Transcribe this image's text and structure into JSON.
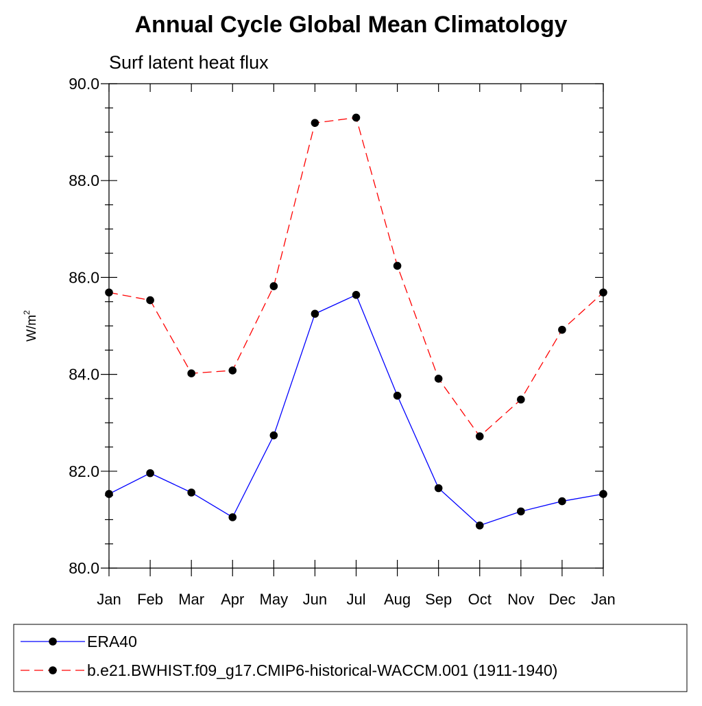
{
  "chart_data": {
    "type": "line",
    "title": "Annual Cycle Global Mean Climatology",
    "subtitle": "Surf latent heat flux",
    "ylabel": "W/m",
    "ylabel_superscript": "2",
    "xlabel": "",
    "categories": [
      "Jan",
      "Feb",
      "Mar",
      "Apr",
      "May",
      "Jun",
      "Jul",
      "Aug",
      "Sep",
      "Oct",
      "Nov",
      "Dec",
      "Jan"
    ],
    "ylim": [
      80.0,
      90.0
    ],
    "y_major_ticks": [
      80.0,
      82.0,
      84.0,
      86.0,
      88.0,
      90.0
    ],
    "y_tick_labels": [
      "80.0",
      "82.0",
      "84.0",
      "86.0",
      "88.0",
      "90.0"
    ],
    "y_minor_step": 0.5,
    "grid": false,
    "legend_position": "bottom",
    "series": [
      {
        "name": "ERA40",
        "color": "#0000ff",
        "line_style": "solid",
        "marker": "circle",
        "values": [
          81.53,
          81.96,
          81.56,
          81.05,
          82.74,
          85.25,
          85.64,
          83.56,
          81.65,
          80.88,
          81.17,
          81.38,
          81.53
        ]
      },
      {
        "name": "b.e21.BWHIST.f09_g17.CMIP6-historical-WACCM.001 (1911-1940)",
        "color": "#ff0000",
        "line_style": "dashed",
        "marker": "circle",
        "values": [
          85.69,
          85.53,
          84.02,
          84.08,
          85.82,
          89.19,
          89.3,
          86.24,
          83.91,
          82.72,
          83.48,
          84.92,
          85.69
        ]
      }
    ]
  }
}
